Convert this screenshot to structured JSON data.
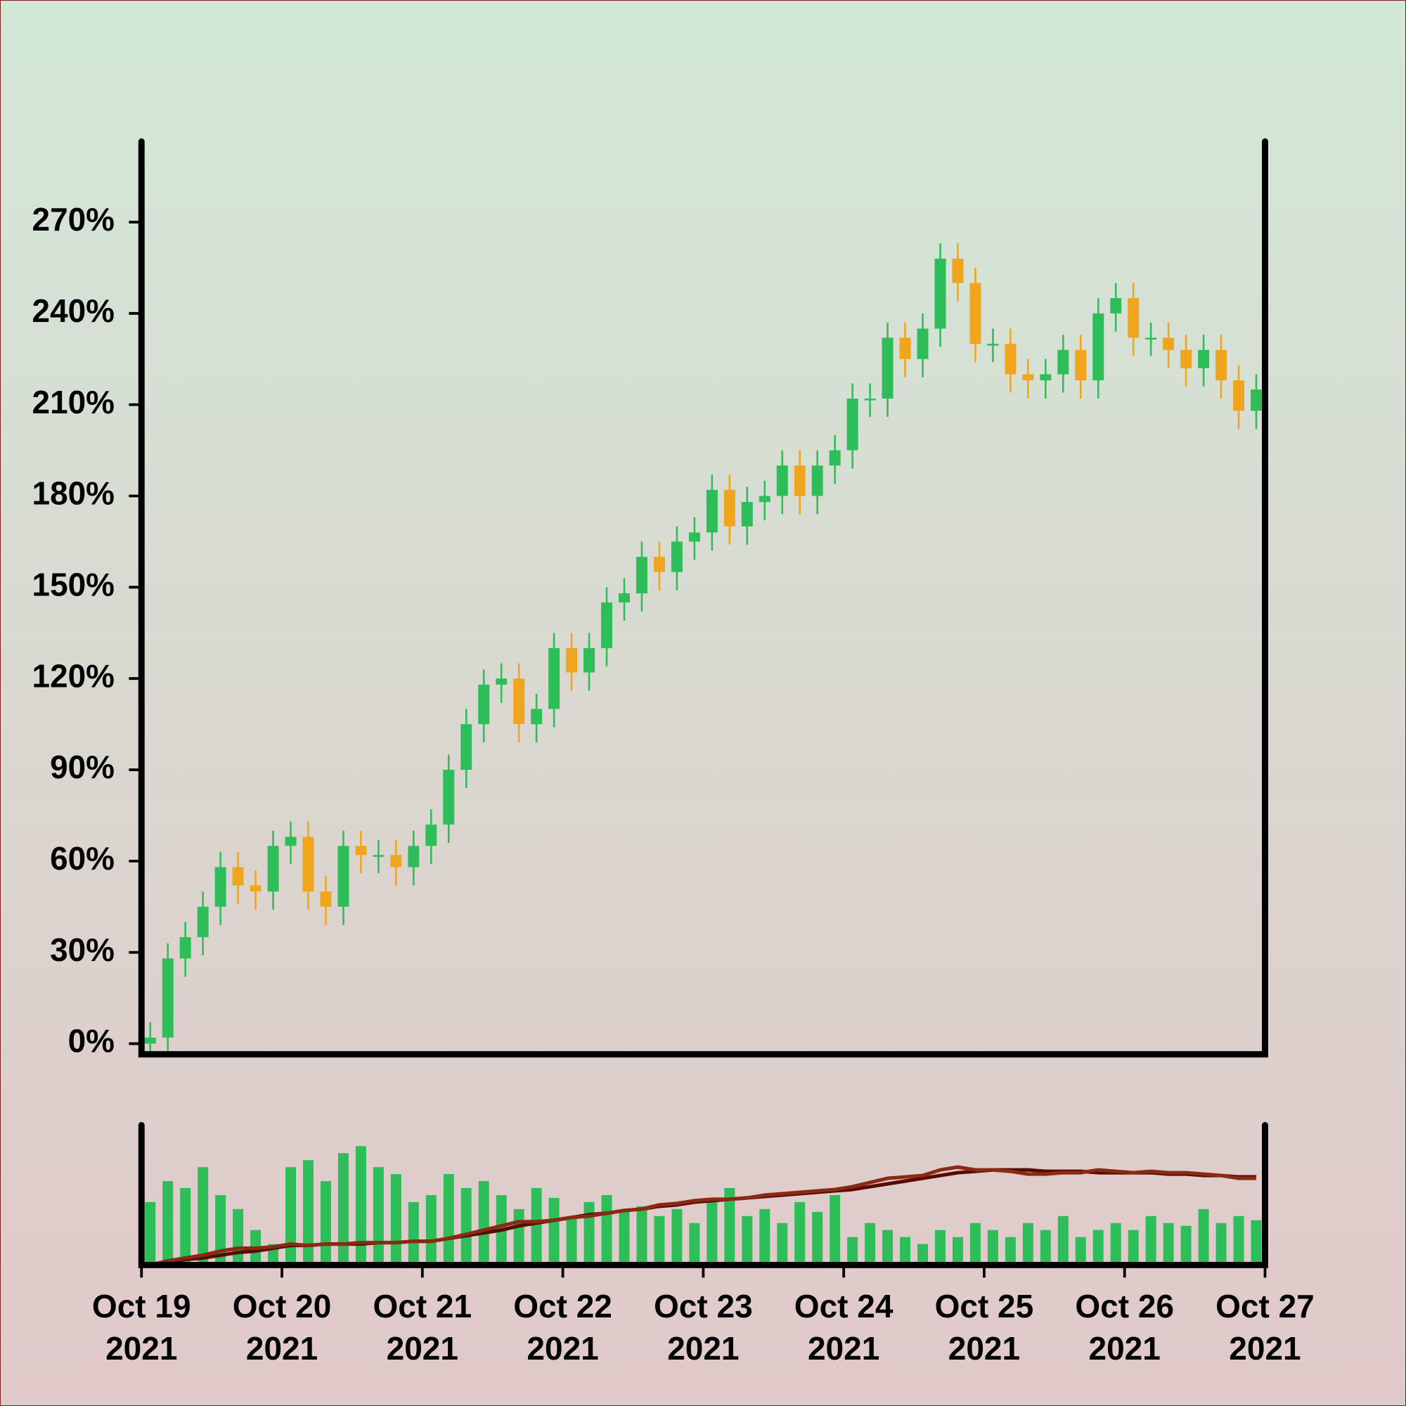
{
  "chart_data": {
    "type": "candlestick",
    "x": [
      0.0625,
      0.1875,
      0.3125,
      0.4375,
      0.5625,
      0.6875,
      0.8125,
      0.9375,
      1.0625,
      1.1875,
      1.3125,
      1.4375,
      1.5625,
      1.6875,
      1.8125,
      1.9375,
      2.0625,
      2.1875,
      2.3125,
      2.4375,
      2.5625,
      2.6875,
      2.8125,
      2.9375,
      3.0625,
      3.1875,
      3.3125,
      3.4375,
      3.5625,
      3.6875,
      3.8125,
      3.9375,
      4.0625,
      4.1875,
      4.3125,
      4.4375,
      4.5625,
      4.6875,
      4.8125,
      4.9375,
      5.0625,
      5.1875,
      5.3125,
      5.4375,
      5.5625,
      5.6875,
      5.8125,
      5.9375,
      6.0625,
      6.1875,
      6.3125,
      6.4375,
      6.5625,
      6.6875,
      6.8125,
      6.9375,
      7.0625,
      7.1875,
      7.3125,
      7.4375,
      7.5625,
      7.6875,
      7.8125,
      7.9375
    ],
    "open": [
      0,
      2,
      28,
      35,
      45,
      58,
      52,
      50,
      65,
      68,
      50,
      45,
      65,
      62,
      62,
      58,
      65,
      72,
      90,
      105,
      118,
      120,
      105,
      110,
      130,
      122,
      130,
      145,
      148,
      160,
      155,
      165,
      168,
      182,
      170,
      178,
      180,
      190,
      180,
      190,
      195,
      212,
      212,
      232,
      225,
      235,
      258,
      250,
      230,
      230,
      220,
      218,
      220,
      228,
      218,
      240,
      245,
      232,
      232,
      228,
      222,
      228,
      218,
      208
    ],
    "high": [
      7,
      33,
      40,
      50,
      63,
      63,
      57,
      70,
      73,
      73,
      55,
      70,
      70,
      67,
      67,
      70,
      77,
      95,
      110,
      123,
      125,
      125,
      115,
      135,
      135,
      135,
      150,
      153,
      165,
      165,
      170,
      173,
      187,
      187,
      183,
      185,
      195,
      195,
      195,
      200,
      217,
      217,
      237,
      237,
      240,
      263,
      263,
      255,
      235,
      235,
      225,
      225,
      233,
      233,
      245,
      250,
      250,
      237,
      237,
      233,
      233,
      233,
      223,
      220
    ],
    "low": [
      -3,
      -3,
      22,
      29,
      39,
      46,
      44,
      44,
      59,
      44,
      39,
      39,
      56,
      56,
      52,
      52,
      59,
      66,
      84,
      99,
      112,
      99,
      99,
      104,
      116,
      116,
      124,
      139,
      142,
      149,
      149,
      159,
      162,
      164,
      164,
      172,
      174,
      174,
      174,
      184,
      189,
      206,
      206,
      219,
      219,
      229,
      244,
      224,
      224,
      214,
      212,
      212,
      214,
      212,
      212,
      234,
      226,
      226,
      222,
      216,
      216,
      212,
      202,
      202
    ],
    "close": [
      2,
      28,
      35,
      45,
      58,
      52,
      50,
      65,
      68,
      50,
      45,
      65,
      62,
      62,
      58,
      65,
      72,
      90,
      105,
      118,
      120,
      105,
      110,
      130,
      122,
      130,
      145,
      148,
      160,
      155,
      165,
      168,
      182,
      170,
      178,
      180,
      190,
      180,
      190,
      195,
      212,
      212,
      232,
      225,
      235,
      258,
      250,
      230,
      230,
      220,
      218,
      220,
      228,
      218,
      240,
      245,
      232,
      232,
      228,
      222,
      228,
      218,
      208,
      215
    ],
    "up_color": "#2dbe5a",
    "down_color": "#f0a51e",
    "xlim": [
      0,
      8
    ],
    "xticks": [
      {
        "value": 0,
        "label": "Oct 19 2021"
      },
      {
        "value": 1,
        "label": "Oct 20 2021"
      },
      {
        "value": 2,
        "label": "Oct 21 2021"
      },
      {
        "value": 3,
        "label": "Oct 22 2021"
      },
      {
        "value": 4,
        "label": "Oct 23 2021"
      },
      {
        "value": 5,
        "label": "Oct 24 2021"
      },
      {
        "value": 6,
        "label": "Oct 25 2021"
      },
      {
        "value": 7,
        "label": "Oct 26 2021"
      },
      {
        "value": 8,
        "label": "Oct 27 2021"
      }
    ],
    "ylim": [
      -3.5,
      296.5
    ],
    "yticks": [
      {
        "value": 0,
        "label": "0%"
      },
      {
        "value": 30,
        "label": "30%"
      },
      {
        "value": 60,
        "label": "60%"
      },
      {
        "value": 90,
        "label": "90%"
      },
      {
        "value": 120,
        "label": "120%"
      },
      {
        "value": 150,
        "label": "150%"
      },
      {
        "value": 180,
        "label": "180%"
      },
      {
        "value": 210,
        "label": "210%"
      },
      {
        "value": 240,
        "label": "240%"
      },
      {
        "value": 270,
        "label": "270%"
      }
    ],
    "volume": {
      "color": "#2dbe5a",
      "ylim": [
        0,
        100
      ],
      "values": [
        45,
        60,
        55,
        70,
        50,
        40,
        25,
        15,
        70,
        75,
        60,
        80,
        85,
        70,
        65,
        45,
        50,
        65,
        55,
        60,
        50,
        40,
        55,
        48,
        35,
        45,
        50,
        38,
        42,
        35,
        40,
        30,
        45,
        55,
        35,
        40,
        30,
        45,
        38,
        50,
        20,
        30,
        25,
        20,
        15,
        25,
        20,
        30,
        25,
        20,
        30,
        25,
        35,
        20,
        25,
        30,
        25,
        35,
        30,
        28,
        40,
        30,
        35,
        32
      ]
    },
    "volume_lines": [
      {
        "color": "#5a0a05",
        "values": [
          0,
          2,
          4,
          5,
          7,
          9,
          10,
          12,
          14,
          14,
          15,
          15,
          15,
          16,
          16,
          17,
          17,
          19,
          21,
          23,
          25,
          28,
          30,
          32,
          34,
          36,
          37,
          39,
          40,
          42,
          43,
          45,
          46,
          47,
          48,
          49,
          50,
          51,
          52,
          53,
          54,
          56,
          58,
          60,
          62,
          64,
          66,
          67,
          68,
          68,
          68,
          67,
          67,
          67,
          66,
          66,
          66,
          66,
          65,
          65,
          64,
          64,
          63,
          63
        ]
      },
      {
        "color": "#8a2a12",
        "values": [
          0,
          3,
          5,
          7,
          10,
          12,
          12,
          13,
          15,
          14,
          15,
          15,
          16,
          16,
          16,
          17,
          17,
          19,
          22,
          25,
          28,
          31,
          31,
          32,
          34,
          35,
          37,
          39,
          40,
          43,
          44,
          46,
          47,
          47,
          48,
          50,
          51,
          52,
          53,
          54,
          56,
          59,
          62,
          63,
          64,
          68,
          70,
          68,
          68,
          67,
          65,
          65,
          66,
          66,
          68,
          67,
          66,
          67,
          66,
          66,
          65,
          64,
          62,
          62
        ]
      }
    ]
  }
}
